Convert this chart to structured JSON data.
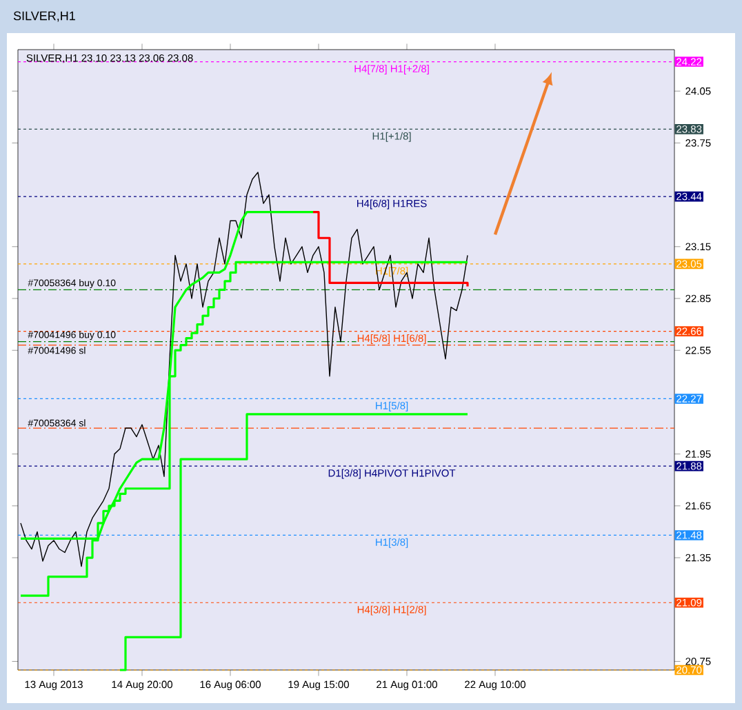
{
  "chart_data": {
    "type": "line",
    "title": "SILVER,H1",
    "subtitle": "SILVER,H1  23.10 23.13 23.06 23.08",
    "categories": [
      null,
      null,
      null,
      null,
      null,
      null,
      "13 Aug 2013",
      null,
      null,
      null,
      null,
      null,
      null,
      null,
      null,
      null,
      null,
      null,
      null,
      null,
      null,
      null,
      "14 Aug 20:00",
      null,
      null,
      null,
      null,
      null,
      null,
      null,
      null,
      null,
      null,
      null,
      null,
      null,
      null,
      null,
      "16 Aug 06:00",
      null,
      null,
      null,
      null,
      null,
      null,
      null,
      null,
      null,
      null,
      null,
      null,
      null,
      null,
      null,
      "19 Aug 15:00",
      null,
      null,
      null,
      null,
      null,
      null,
      null,
      null,
      null,
      null,
      null,
      null,
      null,
      null,
      null,
      "21 Aug 01:00",
      null,
      null,
      null,
      null,
      null,
      null,
      null,
      null,
      null,
      null,
      null,
      null,
      null,
      null,
      null,
      "22 Aug 10:00",
      null,
      null,
      null,
      null,
      null,
      null,
      null,
      null,
      null,
      null,
      null,
      null,
      null,
      null,
      null,
      null,
      null,
      null,
      null,
      null,
      null,
      null,
      null,
      null,
      null,
      null,
      null,
      null,
      null,
      null,
      null,
      null
    ],
    "ylim": [
      20.7,
      24.29
    ],
    "yticks": [
      20.75,
      21.35,
      21.65,
      21.95,
      22.55,
      22.85,
      23.15,
      23.75,
      24.05
    ],
    "series": [
      {
        "color": "#000000",
        "values": [
          21.55,
          21.45,
          21.4,
          21.5,
          21.33,
          21.42,
          21.45,
          21.4,
          21.38,
          21.45,
          21.5,
          21.3,
          21.5,
          21.58,
          21.63,
          21.68,
          21.75,
          21.95,
          21.98,
          22.1,
          22.1,
          22.05,
          22.12,
          22.02,
          21.92,
          22.0,
          21.82,
          22.5,
          23.1,
          22.95,
          23.05,
          22.85,
          23.05,
          22.8,
          22.95,
          23.0,
          23.2,
          23.05,
          23.3,
          23.3,
          23.2,
          23.45,
          23.54,
          23.58,
          23.4,
          23.45,
          23.15,
          22.95,
          23.2,
          23.05,
          23.1,
          23.15,
          23.0,
          23.1,
          23.15,
          23.0,
          22.4,
          22.8,
          22.6,
          22.95,
          23.2,
          23.25,
          23.05,
          23.1,
          23.15,
          22.9,
          23.0,
          23.1,
          22.8,
          22.95,
          23.0,
          22.85,
          23.05,
          23.0,
          23.2,
          22.9,
          22.7,
          22.5,
          22.8,
          22.78,
          22.9,
          23.1,
          null,
          null,
          null,
          null,
          null,
          null,
          null,
          null,
          null,
          null,
          null,
          null,
          null,
          null,
          null,
          null,
          null,
          null,
          null,
          null,
          null,
          null,
          null,
          null,
          null,
          null,
          null,
          null,
          null,
          null,
          null,
          null,
          null,
          null,
          null,
          null,
          null
        ]
      },
      {
        "color": "#00ff00",
        "type": "step",
        "values": [
          21.13,
          21.13,
          21.13,
          21.13,
          21.13,
          21.24,
          21.24,
          21.24,
          21.24,
          21.24,
          21.24,
          21.24,
          21.35,
          21.45,
          21.55,
          21.62,
          21.65,
          21.68,
          21.72,
          21.75,
          21.75,
          21.75,
          21.75,
          21.75,
          21.75,
          21.75,
          21.75,
          22.4,
          22.55,
          22.58,
          22.62,
          22.65,
          22.7,
          22.75,
          22.8,
          22.85,
          22.9,
          22.95,
          23.0,
          23.06,
          23.06,
          23.06,
          23.06,
          23.06,
          23.06,
          23.06,
          23.06,
          23.06,
          23.06,
          23.06,
          23.06,
          23.06,
          23.06,
          23.06,
          23.06,
          23.06,
          23.06,
          23.06,
          23.06,
          23.06,
          23.06,
          23.06,
          23.06,
          23.06,
          23.06,
          23.06,
          23.06,
          23.06,
          23.06,
          23.06,
          23.06,
          23.06,
          23.06,
          23.06,
          23.06,
          23.06,
          23.06,
          23.06,
          23.06,
          23.06,
          23.06,
          23.06,
          null,
          null,
          null,
          null,
          null,
          null,
          null,
          null,
          null,
          null,
          null,
          null,
          null,
          null,
          null,
          null,
          null,
          null,
          null,
          null,
          null,
          null,
          null,
          null,
          null,
          null,
          null,
          null,
          null,
          null,
          null,
          null,
          null,
          null,
          null,
          null,
          null
        ]
      },
      {
        "color": "#00ff00",
        "type": "step",
        "values": [
          null,
          null,
          null,
          null,
          null,
          null,
          null,
          null,
          null,
          null,
          null,
          null,
          null,
          null,
          null,
          null,
          null,
          null,
          20.7,
          20.89,
          20.89,
          20.89,
          20.89,
          20.89,
          20.89,
          20.89,
          20.89,
          20.89,
          20.89,
          21.92,
          21.92,
          21.92,
          21.92,
          21.92,
          21.92,
          21.92,
          21.92,
          21.92,
          21.92,
          21.92,
          21.92,
          22.18,
          22.18,
          22.18,
          22.18,
          22.18,
          22.18,
          22.18,
          22.18,
          22.18,
          22.18,
          22.18,
          22.18,
          22.18,
          22.18,
          22.18,
          22.18,
          22.18,
          22.18,
          22.18,
          22.18,
          22.18,
          22.18,
          22.18,
          22.18,
          22.18,
          22.18,
          22.18,
          22.18,
          22.18,
          22.18,
          22.18,
          22.18,
          22.18,
          22.18,
          22.18,
          22.18,
          22.18,
          22.18,
          22.18,
          22.18,
          22.18,
          null,
          null,
          null,
          null,
          null,
          null,
          null,
          null,
          null,
          null,
          null,
          null,
          null,
          null,
          null,
          null,
          null,
          null,
          null,
          null,
          null,
          null,
          null,
          null,
          null,
          null,
          null,
          null,
          null,
          null,
          null,
          null,
          null,
          null,
          null,
          null,
          null
        ]
      },
      {
        "color": "#00ff00",
        "values": [
          21.46,
          21.46,
          21.46,
          21.46,
          21.46,
          21.46,
          21.46,
          21.46,
          21.46,
          21.46,
          21.46,
          21.46,
          21.46,
          21.46,
          21.46,
          21.55,
          21.62,
          21.68,
          21.75,
          21.8,
          21.85,
          21.9,
          21.92,
          21.92,
          21.92,
          21.92,
          22.1,
          22.4,
          22.8,
          22.85,
          22.9,
          22.93,
          22.95,
          22.97,
          23.0,
          23.0,
          23.0,
          23.02,
          23.1,
          23.2,
          23.3,
          23.35,
          23.35,
          23.35,
          23.35,
          23.35,
          23.35,
          23.35,
          23.35,
          23.35,
          23.35,
          23.35,
          23.35,
          23.35,
          null,
          null,
          null,
          null,
          null,
          null,
          null,
          null,
          null,
          null,
          null,
          null,
          null,
          null,
          null,
          null,
          null,
          null,
          null,
          null,
          null,
          null,
          null,
          null,
          null,
          null,
          null,
          null,
          null,
          null,
          null,
          null,
          null,
          null,
          null,
          null,
          null,
          null,
          null,
          null,
          null,
          null,
          null,
          null,
          null,
          null,
          null,
          null,
          null,
          null,
          null,
          null,
          null,
          null,
          null,
          null,
          null,
          null,
          null,
          null,
          null,
          null,
          null,
          null,
          null
        ]
      },
      {
        "color": "#ff0000",
        "type": "step",
        "values": [
          null,
          null,
          null,
          null,
          null,
          null,
          null,
          null,
          null,
          null,
          null,
          null,
          null,
          null,
          null,
          null,
          null,
          null,
          null,
          null,
          null,
          null,
          null,
          null,
          null,
          null,
          null,
          null,
          null,
          null,
          null,
          null,
          null,
          null,
          null,
          null,
          null,
          null,
          null,
          null,
          null,
          null,
          null,
          null,
          null,
          null,
          null,
          null,
          null,
          null,
          null,
          null,
          null,
          23.35,
          23.2,
          23.2,
          22.94,
          22.94,
          22.94,
          22.94,
          22.94,
          22.94,
          22.94,
          22.94,
          22.94,
          22.94,
          22.94,
          22.94,
          22.94,
          22.94,
          22.94,
          22.94,
          22.94,
          22.94,
          22.94,
          22.94,
          22.94,
          22.94,
          22.94,
          22.94,
          22.94,
          22.92,
          null,
          null,
          null,
          null,
          null,
          null,
          null,
          null,
          null,
          null,
          null,
          null,
          null,
          null,
          null,
          null,
          null,
          null,
          null,
          null,
          null,
          null,
          null,
          null,
          null,
          null,
          null,
          null,
          null,
          null,
          null,
          null,
          null,
          null,
          null,
          null,
          null
        ]
      }
    ],
    "ref_lines": [
      {
        "axis": "y",
        "value": 24.22,
        "label": "H4[7/8] H1[+2/8]",
        "color": "#ff00ff",
        "line_style": "dotted"
      },
      {
        "axis": "y",
        "value": 23.83,
        "label": "H1[+1/8]",
        "color": "#2f4f4f",
        "line_style": "dotted"
      },
      {
        "axis": "y",
        "value": 23.44,
        "label": "H4[6/8] H1RES",
        "color": "#000080",
        "line_style": "dotted"
      },
      {
        "axis": "y",
        "value": 23.05,
        "label": "H1[7/8]",
        "color": "#ffa500",
        "line_style": "dotted"
      },
      {
        "axis": "y",
        "value": 22.9,
        "label": "#70058364 buy 0.10",
        "color": "#008000",
        "line_style": "dashed"
      },
      {
        "axis": "y",
        "value": 22.66,
        "label": "H4[5/8] H1[6/8]",
        "color": "#ff4500",
        "line_style": "dotted"
      },
      {
        "axis": "y",
        "value": 22.6,
        "label": "#70041496 buy 0.10",
        "color": "#008000",
        "line_style": "dashed"
      },
      {
        "axis": "y",
        "value": 22.58,
        "label": "#70041496 sl",
        "color": "#ff4500",
        "line_style": "dashed"
      },
      {
        "axis": "y",
        "value": 22.27,
        "label": "H1[5/8]",
        "color": "#1e90ff",
        "line_style": "dotted"
      },
      {
        "axis": "y",
        "value": 22.1,
        "label": "#70058364 sl",
        "color": "#ff4500",
        "line_style": "dashed"
      },
      {
        "axis": "y",
        "value": 21.88,
        "label": "D1[3/8] H4PIVOT H1PIVOT",
        "color": "#000080",
        "line_style": "dotted"
      },
      {
        "axis": "y",
        "value": 21.48,
        "label": "H1[3/8]",
        "color": "#1e90ff",
        "line_style": "dotted"
      },
      {
        "axis": "y",
        "value": 21.09,
        "label": "H4[3/8] H1[2/8]",
        "color": "#ff4500",
        "line_style": "dotted"
      },
      {
        "axis": "y",
        "value": 20.7,
        "color": "#ffa500",
        "line_style": "dotted"
      }
    ],
    "annotations": [
      {
        "text": "24.22",
        "y": 24.22
      },
      {
        "text": "23.83",
        "y": 23.83
      },
      {
        "text": "23.44",
        "y": 23.44
      },
      {
        "text": "23.05",
        "y": 23.05
      },
      {
        "text": "22.66",
        "y": 22.66
      },
      {
        "text": "22.27",
        "y": 22.27
      },
      {
        "text": "21.88",
        "y": 21.88
      },
      {
        "text": "21.48",
        "y": 21.48
      },
      {
        "text": "21.09",
        "y": 21.09
      },
      {
        "text": "20.70",
        "y": 20.7
      }
    ]
  }
}
